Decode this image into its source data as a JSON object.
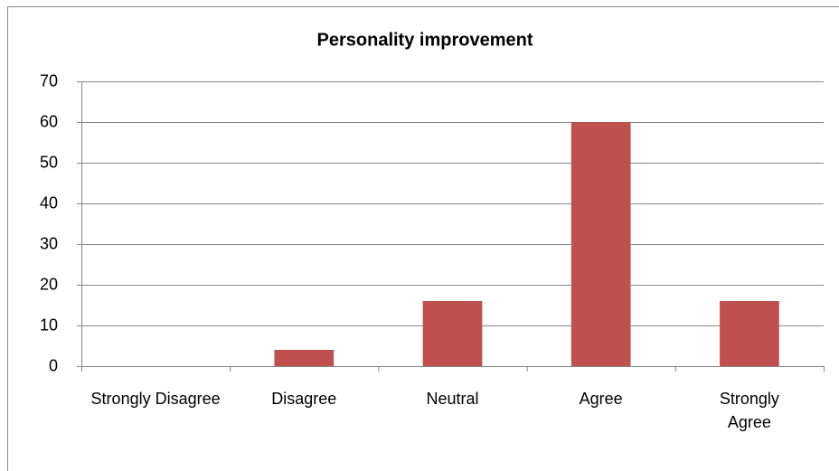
{
  "chart_data": {
    "type": "bar",
    "title": "Personality improvement",
    "categories": [
      "Strongly Disagree",
      "Disagree",
      "Neutral",
      "Agree",
      "Strongly Agree"
    ],
    "values": [
      0,
      4,
      16,
      60,
      16
    ],
    "color": "#c0504d",
    "ylim": [
      0,
      70
    ],
    "yticks": [
      0,
      10,
      20,
      30,
      40,
      50,
      60,
      70
    ],
    "grid": true
  }
}
